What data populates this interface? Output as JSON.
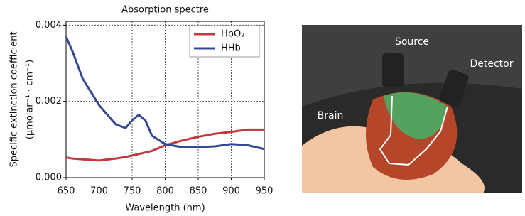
{
  "chart_data": {
    "type": "line",
    "title": "Absorption spectre",
    "x_label": "Wavelength (nm)",
    "y_label": [
      "Specific extinction coefficient",
      "(µmolar⁻¹ · cm⁻¹)"
    ],
    "x": [
      650,
      660,
      675,
      700,
      725,
      740,
      750,
      760,
      770,
      780,
      800,
      825,
      850,
      875,
      900,
      925,
      950
    ],
    "series": [
      {
        "name": "HbO₂",
        "color": "#c0393b",
        "values": [
          0.00053,
          0.0005,
          0.00048,
          0.00045,
          0.0005,
          0.00054,
          0.00058,
          0.00062,
          0.00066,
          0.0007,
          0.00085,
          0.00097,
          0.00107,
          0.00115,
          0.0012,
          0.00126,
          0.00126
        ]
      },
      {
        "name": "HHb",
        "color": "#34498f",
        "values": [
          0.0037,
          0.0033,
          0.0026,
          0.0019,
          0.0014,
          0.0013,
          0.0015,
          0.00165,
          0.0015,
          0.0011,
          0.00088,
          0.0008,
          0.0008,
          0.00082,
          0.00088,
          0.00085,
          0.00075
        ]
      }
    ],
    "xlim": [
      650,
      950
    ],
    "xticks": [
      650,
      700,
      750,
      800,
      850,
      900,
      950
    ],
    "ylim": [
      0,
      0.0041
    ],
    "yticks": [
      {
        "value": 0,
        "label": "0.000"
      },
      {
        "value": 0.002,
        "label": "0.002"
      },
      {
        "value": 0.004,
        "label": "0.004"
      }
    ],
    "grid": true,
    "legend": "upper right"
  },
  "illustration": {
    "labels": [
      "Source",
      "Detector",
      "Brain"
    ]
  }
}
